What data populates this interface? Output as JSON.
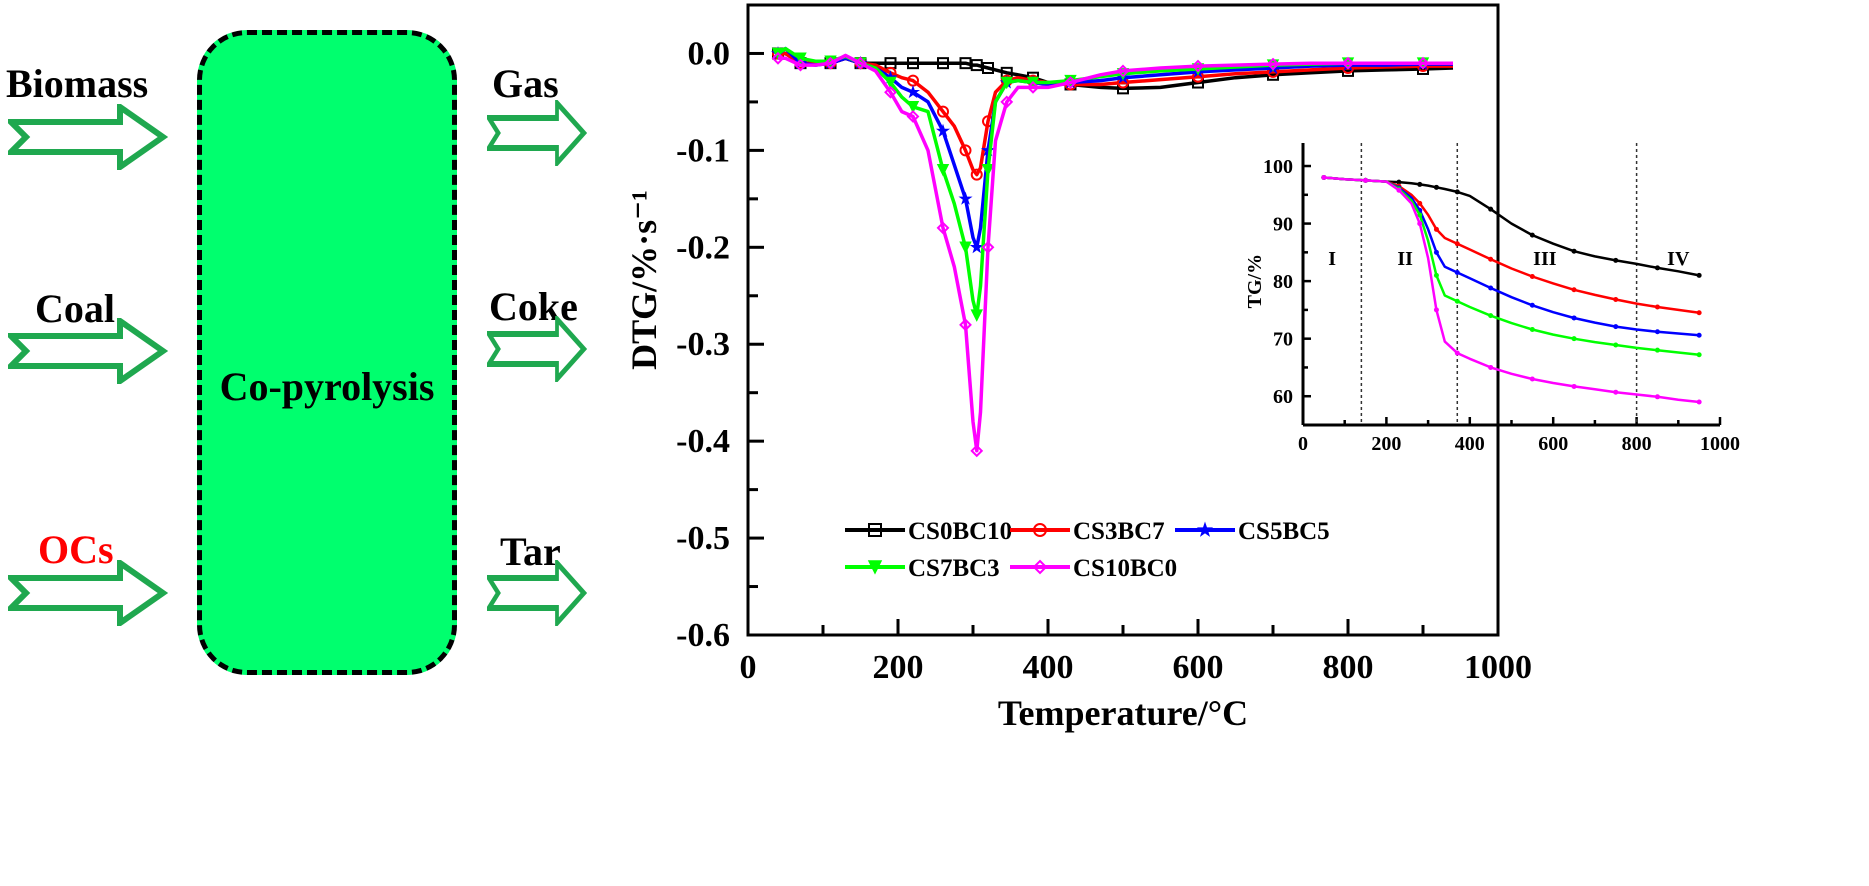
{
  "diagram": {
    "inputs": [
      {
        "label": "Biomass",
        "color": "#000000"
      },
      {
        "label": "Coal",
        "color": "#000000"
      },
      {
        "label": "OCs",
        "color": "#ff0000"
      }
    ],
    "process_label": "Co-pyrolysis",
    "process_fill": "#00ff6e",
    "outputs": [
      {
        "label": "Gas"
      },
      {
        "label": "Coke"
      },
      {
        "label": "Tar"
      }
    ],
    "arrow_color": "#1fa84f"
  },
  "chart_data": [
    {
      "id": "main",
      "type": "line",
      "title": "",
      "xlabel": "Temperature/°C",
      "ylabel": "DTG/%·s⁻¹",
      "xlim": [
        0,
        1000
      ],
      "ylim": [
        -0.6,
        0.05
      ],
      "xticks": [
        0,
        200,
        400,
        600,
        800,
        1000
      ],
      "yticks": [
        0.0,
        -0.1,
        -0.2,
        -0.3,
        -0.4,
        -0.5,
        -0.6
      ],
      "ytick_labels": [
        "0.0",
        "-0.1",
        "-0.2",
        "-0.3",
        "-0.4",
        "-0.5",
        "-0.6"
      ],
      "grid": false,
      "legend": "bottom-center",
      "x": [
        40,
        50,
        70,
        90,
        110,
        130,
        150,
        170,
        190,
        205,
        220,
        240,
        260,
        275,
        290,
        300,
        305,
        310,
        320,
        330,
        345,
        360,
        380,
        400,
        430,
        470,
        500,
        550,
        600,
        650,
        700,
        750,
        800,
        850,
        900,
        940
      ],
      "series": [
        {
          "name": "CS0BC10",
          "color": "#000000",
          "marker": "square",
          "values": [
            0.0,
            0.0,
            -0.01,
            -0.01,
            -0.01,
            -0.005,
            -0.01,
            -0.01,
            -0.01,
            -0.01,
            -0.01,
            -0.01,
            -0.01,
            -0.01,
            -0.01,
            -0.012,
            -0.012,
            -0.013,
            -0.015,
            -0.017,
            -0.02,
            -0.022,
            -0.025,
            -0.03,
            -0.032,
            -0.035,
            -0.036,
            -0.035,
            -0.03,
            -0.025,
            -0.022,
            -0.02,
            -0.018,
            -0.017,
            -0.016,
            -0.015
          ]
        },
        {
          "name": "CS3BC7",
          "color": "#ff0000",
          "marker": "circle",
          "values": [
            0.0,
            0.0,
            -0.01,
            -0.01,
            -0.01,
            -0.005,
            -0.01,
            -0.012,
            -0.02,
            -0.025,
            -0.028,
            -0.04,
            -0.06,
            -0.075,
            -0.1,
            -0.12,
            -0.125,
            -0.118,
            -0.07,
            -0.04,
            -0.028,
            -0.025,
            -0.028,
            -0.03,
            -0.032,
            -0.032,
            -0.03,
            -0.027,
            -0.024,
            -0.021,
            -0.019,
            -0.017,
            -0.015,
            -0.014,
            -0.013,
            -0.013
          ]
        },
        {
          "name": "CS5BC5",
          "color": "#0000ff",
          "marker": "star",
          "values": [
            0.0,
            0.005,
            -0.01,
            -0.012,
            -0.01,
            -0.005,
            -0.01,
            -0.015,
            -0.025,
            -0.035,
            -0.04,
            -0.05,
            -0.08,
            -0.115,
            -0.15,
            -0.19,
            -0.2,
            -0.18,
            -0.1,
            -0.05,
            -0.03,
            -0.028,
            -0.03,
            -0.032,
            -0.03,
            -0.028,
            -0.025,
            -0.022,
            -0.019,
            -0.017,
            -0.015,
            -0.013,
            -0.012,
            -0.012,
            -0.011,
            -0.011
          ]
        },
        {
          "name": "CS7BC3",
          "color": "#00ff00",
          "marker": "triangle-down",
          "values": [
            0.0,
            0.005,
            -0.005,
            -0.008,
            -0.008,
            -0.003,
            -0.01,
            -0.015,
            -0.03,
            -0.045,
            -0.055,
            -0.06,
            -0.12,
            -0.155,
            -0.2,
            -0.255,
            -0.27,
            -0.24,
            -0.12,
            -0.05,
            -0.03,
            -0.028,
            -0.03,
            -0.03,
            -0.028,
            -0.024,
            -0.021,
            -0.018,
            -0.016,
            -0.014,
            -0.012,
            -0.011,
            -0.01,
            -0.01,
            -0.01,
            -0.01
          ]
        },
        {
          "name": "CS10BC0",
          "color": "#ff00ff",
          "marker": "diamond",
          "values": [
            -0.005,
            -0.005,
            -0.012,
            -0.012,
            -0.01,
            -0.002,
            -0.01,
            -0.018,
            -0.04,
            -0.06,
            -0.065,
            -0.1,
            -0.18,
            -0.22,
            -0.28,
            -0.38,
            -0.41,
            -0.37,
            -0.2,
            -0.09,
            -0.05,
            -0.035,
            -0.035,
            -0.035,
            -0.03,
            -0.022,
            -0.018,
            -0.015,
            -0.013,
            -0.012,
            -0.011,
            -0.01,
            -0.01,
            -0.01,
            -0.01,
            -0.01
          ]
        }
      ]
    },
    {
      "id": "inset",
      "type": "line",
      "title": "",
      "xlabel": "",
      "ylabel": "TG/%",
      "xlim": [
        0,
        1000
      ],
      "ylim": [
        55,
        104
      ],
      "xticks": [
        0,
        200,
        400,
        600,
        800,
        1000
      ],
      "yticks": [
        60,
        70,
        80,
        90,
        100
      ],
      "grid": false,
      "stage_dividers": [
        140,
        370,
        800
      ],
      "stage_labels": [
        {
          "text": "I",
          "x": 70,
          "y": 84
        },
        {
          "text": "II",
          "x": 245,
          "y": 84
        },
        {
          "text": "III",
          "x": 580,
          "y": 84
        },
        {
          "text": "IV",
          "x": 900,
          "y": 84
        }
      ],
      "x": [
        50,
        100,
        150,
        200,
        230,
        260,
        280,
        300,
        320,
        340,
        370,
        400,
        450,
        500,
        550,
        600,
        650,
        700,
        750,
        800,
        850,
        900,
        950
      ],
      "series": [
        {
          "name": "CS0BC10",
          "color": "#000000",
          "values": [
            98,
            97.7,
            97.5,
            97.3,
            97.2,
            97.0,
            96.8,
            96.6,
            96.3,
            96.0,
            95.5,
            94.8,
            92.5,
            90.0,
            88.0,
            86.5,
            85.2,
            84.3,
            83.6,
            83.0,
            82.3,
            81.7,
            81.0
          ]
        },
        {
          "name": "CS3BC7",
          "color": "#ff0000",
          "values": [
            98,
            97.7,
            97.5,
            97.3,
            96.5,
            95.0,
            93.5,
            91.5,
            89.0,
            87.5,
            86.5,
            85.5,
            83.8,
            82.2,
            80.8,
            79.6,
            78.5,
            77.6,
            76.8,
            76.1,
            75.5,
            75.0,
            74.5
          ]
        },
        {
          "name": "CS5BC5",
          "color": "#0000ff",
          "values": [
            98,
            97.7,
            97.5,
            97.3,
            96.2,
            94.5,
            92.3,
            89.0,
            85.0,
            82.5,
            81.5,
            80.5,
            78.8,
            77.2,
            75.8,
            74.6,
            73.6,
            72.8,
            72.1,
            71.6,
            71.2,
            70.9,
            70.6
          ]
        },
        {
          "name": "CS7BC3",
          "color": "#00ff00",
          "values": [
            98,
            97.7,
            97.5,
            97.3,
            96.0,
            94.0,
            91.5,
            87.0,
            81.0,
            77.5,
            76.5,
            75.5,
            74.0,
            72.7,
            71.6,
            70.7,
            70.0,
            69.4,
            68.9,
            68.4,
            68.0,
            67.6,
            67.2
          ]
        },
        {
          "name": "CS10BC0",
          "color": "#ff00ff",
          "values": [
            98,
            97.7,
            97.5,
            97.3,
            95.8,
            93.5,
            90.0,
            84.0,
            75.0,
            69.5,
            67.5,
            66.5,
            65.0,
            63.9,
            63.0,
            62.3,
            61.7,
            61.2,
            60.7,
            60.3,
            59.9,
            59.4,
            59.0
          ]
        }
      ]
    }
  ]
}
